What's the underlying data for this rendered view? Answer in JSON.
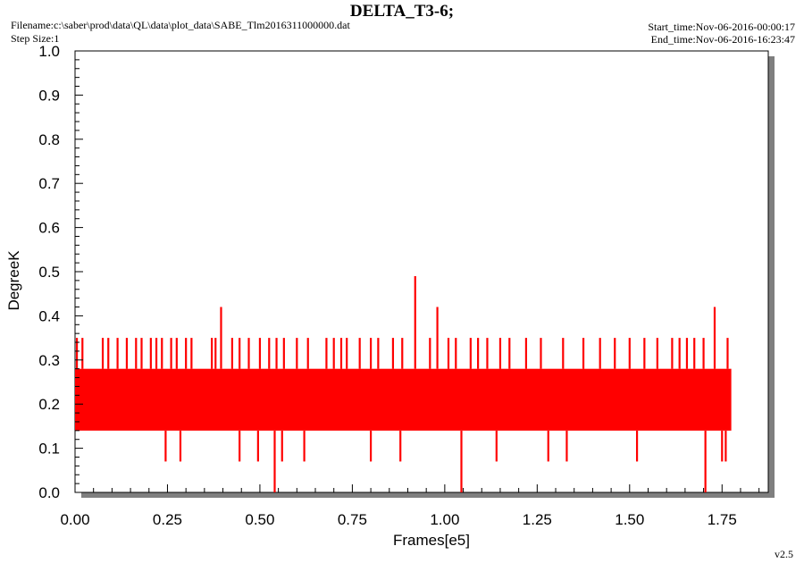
{
  "header": {
    "title": "DELTA_T3-6;",
    "filename": "Filename:c:\\saber\\prod\\data\\QL\\data\\plot_data\\SABE_Tlm2016311000000.dat",
    "step_size": "Step Size:1",
    "start_time": "Start_time:Nov-06-2016-00:00:17",
    "end_time": "End_time:Nov-06-2016-16:23:47"
  },
  "footer": {
    "version": "v2.5"
  },
  "colors": {
    "series": "#ff0000",
    "shadow": "#7f7f7f",
    "frame": "#000000"
  },
  "chart_data": {
    "type": "line",
    "xlabel": "Frames[e5]",
    "ylabel": "DegreeK",
    "xlim": [
      0,
      1.875
    ],
    "ylim": [
      0,
      1.0
    ],
    "x_ticks": [
      0.0,
      0.25,
      0.5,
      0.75,
      1.0,
      1.25,
      1.5,
      1.75
    ],
    "x_tick_labels": [
      "0.00",
      "0.25",
      "0.50",
      "0.75",
      "1.00",
      "1.25",
      "1.50",
      "1.75"
    ],
    "y_ticks": [
      0.0,
      0.1,
      0.2,
      0.3,
      0.4,
      0.5,
      0.6,
      0.7,
      0.8,
      0.9,
      1.0
    ],
    "y_tick_labels": [
      "0.0",
      "0.1",
      "0.2",
      "0.3",
      "0.4",
      "0.5",
      "0.6",
      "0.7",
      "0.8",
      "0.9",
      "1.0"
    ],
    "grid": false,
    "series": [
      {
        "band": {
          "x_range": [
            0.0,
            1.775
          ],
          "low": 0.14,
          "high": 0.28
        },
        "spikes_up": [
          [
            0.005,
            0.35
          ],
          [
            0.02,
            0.35
          ],
          [
            0.075,
            0.35
          ],
          [
            0.09,
            0.35
          ],
          [
            0.115,
            0.35
          ],
          [
            0.14,
            0.35
          ],
          [
            0.165,
            0.35
          ],
          [
            0.18,
            0.35
          ],
          [
            0.205,
            0.35
          ],
          [
            0.22,
            0.35
          ],
          [
            0.235,
            0.35
          ],
          [
            0.26,
            0.35
          ],
          [
            0.275,
            0.35
          ],
          [
            0.3,
            0.35
          ],
          [
            0.315,
            0.35
          ],
          [
            0.37,
            0.35
          ],
          [
            0.38,
            0.35
          ],
          [
            0.395,
            0.42
          ],
          [
            0.425,
            0.35
          ],
          [
            0.445,
            0.35
          ],
          [
            0.47,
            0.35
          ],
          [
            0.5,
            0.35
          ],
          [
            0.525,
            0.35
          ],
          [
            0.545,
            0.35
          ],
          [
            0.565,
            0.35
          ],
          [
            0.6,
            0.35
          ],
          [
            0.63,
            0.35
          ],
          [
            0.68,
            0.35
          ],
          [
            0.7,
            0.35
          ],
          [
            0.72,
            0.35
          ],
          [
            0.735,
            0.35
          ],
          [
            0.77,
            0.35
          ],
          [
            0.8,
            0.35
          ],
          [
            0.82,
            0.35
          ],
          [
            0.86,
            0.35
          ],
          [
            0.885,
            0.35
          ],
          [
            0.92,
            0.49
          ],
          [
            0.96,
            0.35
          ],
          [
            0.98,
            0.42
          ],
          [
            1.01,
            0.35
          ],
          [
            1.03,
            0.35
          ],
          [
            1.07,
            0.35
          ],
          [
            1.09,
            0.35
          ],
          [
            1.115,
            0.35
          ],
          [
            1.15,
            0.35
          ],
          [
            1.175,
            0.35
          ],
          [
            1.22,
            0.35
          ],
          [
            1.26,
            0.35
          ],
          [
            1.32,
            0.35
          ],
          [
            1.375,
            0.35
          ],
          [
            1.42,
            0.35
          ],
          [
            1.46,
            0.35
          ],
          [
            1.5,
            0.35
          ],
          [
            1.54,
            0.35
          ],
          [
            1.575,
            0.35
          ],
          [
            1.615,
            0.35
          ],
          [
            1.635,
            0.35
          ],
          [
            1.655,
            0.35
          ],
          [
            1.675,
            0.35
          ],
          [
            1.7,
            0.35
          ],
          [
            1.73,
            0.42
          ],
          [
            1.765,
            0.35
          ]
        ],
        "spikes_down": [
          [
            0.245,
            0.07
          ],
          [
            0.285,
            0.07
          ],
          [
            0.445,
            0.07
          ],
          [
            0.495,
            0.07
          ],
          [
            0.54,
            0.0
          ],
          [
            0.56,
            0.07
          ],
          [
            0.62,
            0.07
          ],
          [
            0.8,
            0.07
          ],
          [
            0.88,
            0.07
          ],
          [
            1.045,
            0.0
          ],
          [
            1.14,
            0.07
          ],
          [
            1.28,
            0.07
          ],
          [
            1.33,
            0.07
          ],
          [
            1.52,
            0.07
          ],
          [
            1.705,
            0.0
          ],
          [
            1.75,
            0.07
          ],
          [
            1.76,
            0.07
          ]
        ]
      }
    ]
  }
}
